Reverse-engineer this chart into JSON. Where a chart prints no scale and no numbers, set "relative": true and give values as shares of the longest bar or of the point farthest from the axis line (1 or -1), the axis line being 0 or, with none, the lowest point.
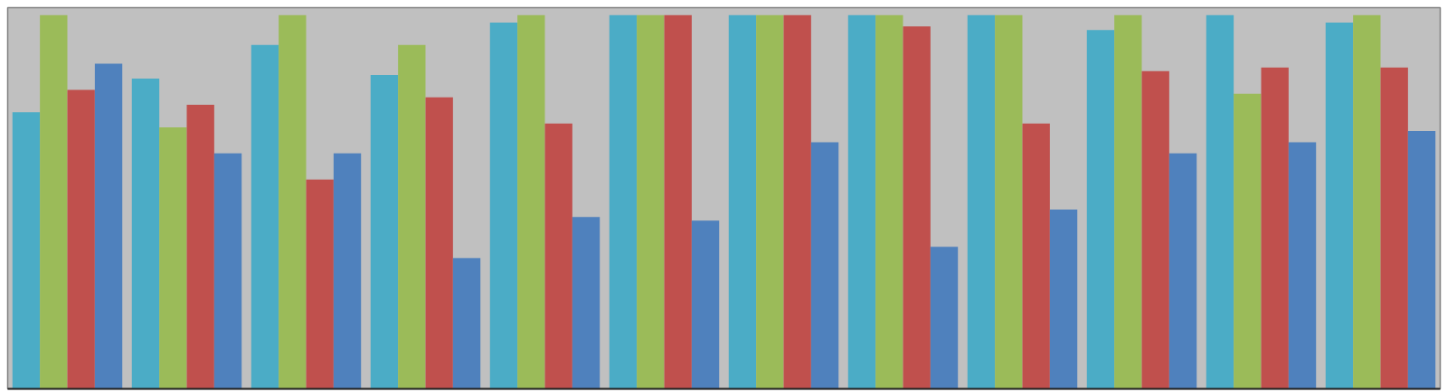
{
  "chart_data": {
    "type": "bar",
    "relative": true,
    "categories": [
      null,
      null,
      null,
      null,
      null,
      null,
      null,
      null,
      null,
      null,
      null,
      null
    ],
    "series": [
      {
        "color": "#4bacc6",
        "values": [
          0.74,
          0.83,
          0.92,
          0.84,
          0.98,
          1,
          1,
          1,
          1,
          0.96,
          1,
          0.98
        ]
      },
      {
        "color": "#9bbb59",
        "values": [
          1,
          0.7,
          1,
          0.92,
          1,
          1,
          1,
          1,
          1,
          1,
          0.79,
          1
        ]
      },
      {
        "color": "#c0504d",
        "values": [
          0.8,
          0.76,
          0.56,
          0.78,
          0.71,
          1,
          1,
          0.97,
          0.71,
          0.85,
          0.86,
          0.86
        ]
      },
      {
        "color": "#4f81bd",
        "values": [
          0.87,
          0.63,
          0.63,
          0.35,
          0.46,
          0.45,
          0.66,
          0.38,
          0.48,
          0.63,
          0.66,
          0.69
        ]
      }
    ]
  }
}
